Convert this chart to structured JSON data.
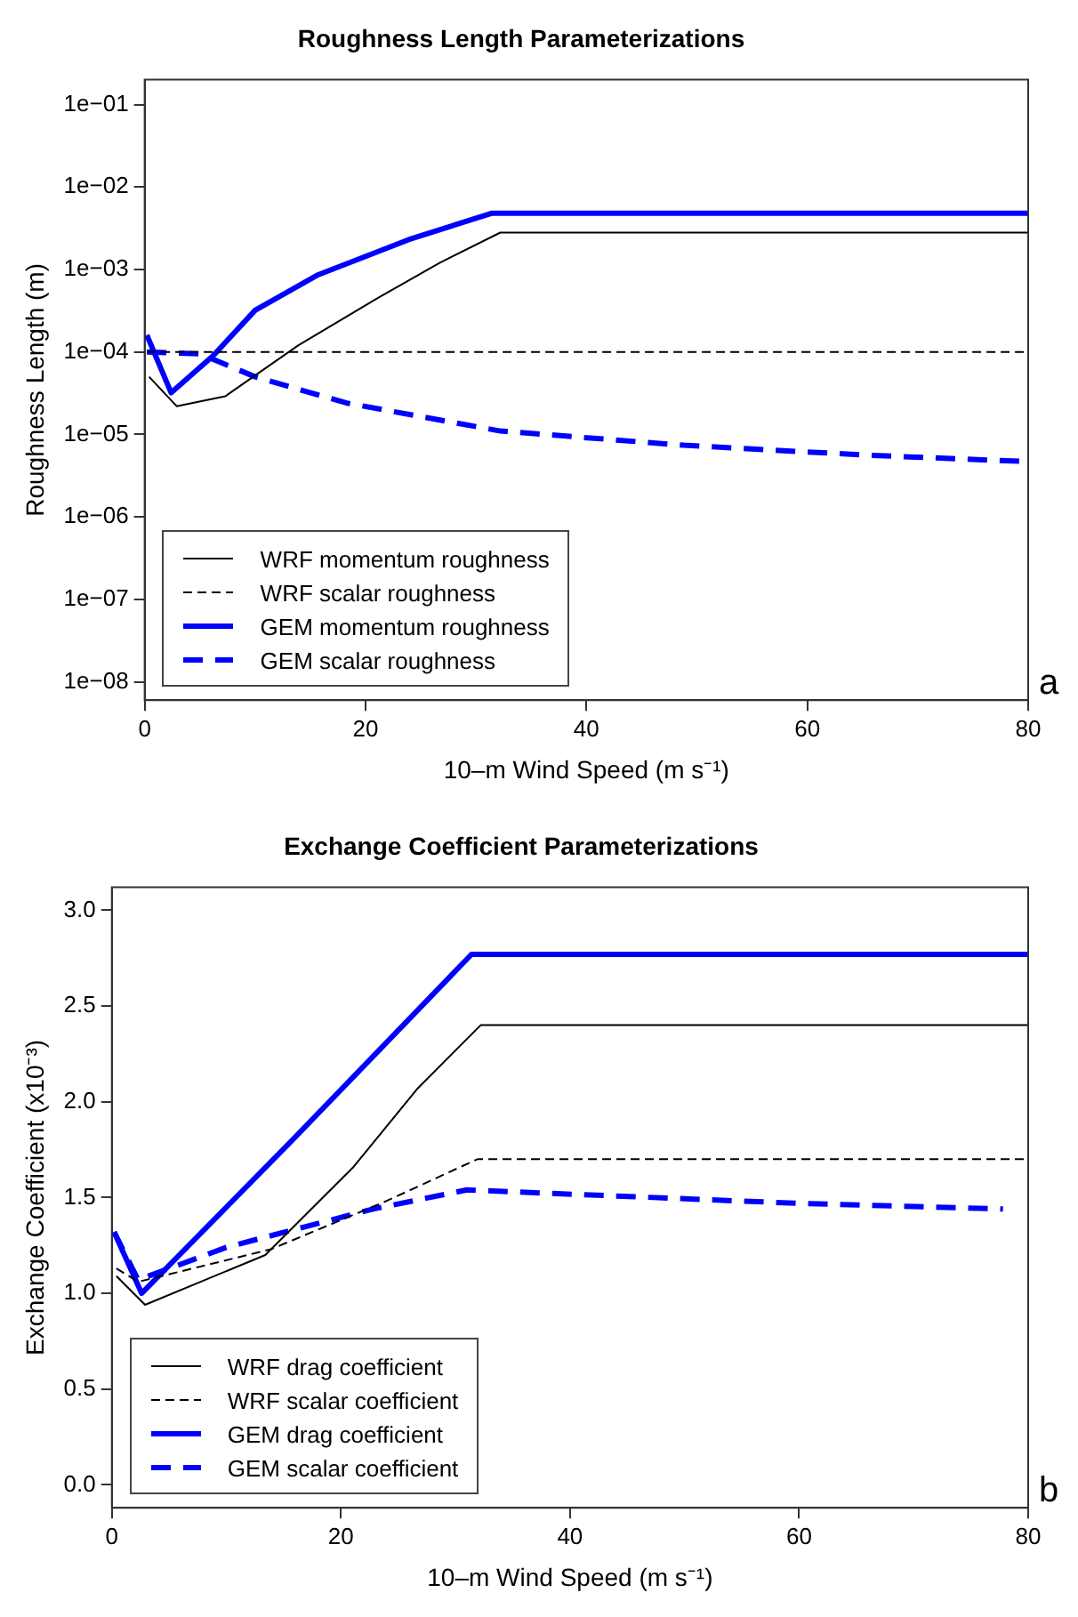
{
  "chart_data": [
    {
      "type": "line",
      "title": "Roughness Length Parameterizations",
      "xlabel": "10–m Wind Speed (m s⁻¹)",
      "ylabel": "Roughness Length (m)",
      "log": "y",
      "grid": false,
      "legend": "bottom left",
      "marker": "none",
      "xlim": [
        0,
        80
      ],
      "ylim": [
        6e-09,
        0.2
      ],
      "xticks": [
        0,
        20,
        40,
        60,
        80
      ],
      "yticks": [
        {
          "value": 1e-08,
          "label": "1e−08"
        },
        {
          "value": 1e-07,
          "label": "1e−07"
        },
        {
          "value": 1e-06,
          "label": "1e−06"
        },
        {
          "value": 1e-05,
          "label": "1e−05"
        },
        {
          "value": 0.0001,
          "label": "1e−04"
        },
        {
          "value": 0.001,
          "label": "1e−03"
        },
        {
          "value": 0.01,
          "label": "1e−02"
        },
        {
          "value": 0.1,
          "label": "1e−01"
        }
      ],
      "annotations": [
        "a"
      ],
      "series": [
        {
          "name": "WRF momentum roughness",
          "color": "#000000",
          "line_style": "solid",
          "x": [
            0.4,
            2.9,
            7.3,
            13.9,
            21.1,
            26.7,
            32.2,
            80
          ],
          "values": [
            5e-05,
            2.2e-05,
            2.9e-05,
            0.00012,
            0.00045,
            0.0012,
            0.0028,
            0.0028
          ]
        },
        {
          "name": "WRF scalar roughness",
          "color": "#000000",
          "line_style": "dashed",
          "x": [
            0.2,
            80
          ],
          "values": [
            0.0001,
            0.0001
          ]
        },
        {
          "name": "GEM momentum roughness",
          "color": "#0000ff",
          "line_style": "solid",
          "x": [
            0.2,
            2.4,
            6.2,
            10,
            15.6,
            23.9,
            31.4,
            80
          ],
          "values": [
            0.00016,
            3.2e-05,
            9e-05,
            0.00032,
            0.00085,
            0.0023,
            0.0048,
            0.0048
          ]
        },
        {
          "name": "GEM scalar roughness",
          "color": "#0000ff",
          "line_style": "dashed",
          "x": [
            0.2,
            5,
            10,
            18.3,
            32.2,
            48.8,
            65.4,
            79.7
          ],
          "values": [
            0.0001,
            9.5e-05,
            5e-05,
            2.4e-05,
            1.1e-05,
            7.4e-06,
            5.6e-06,
            4.7e-06
          ]
        }
      ]
    },
    {
      "type": "line",
      "title": "Exchange Coefficient Parameterizations",
      "xlabel": "10–m Wind Speed (m s⁻¹)",
      "ylabel": "Exchange Coefficient (x10⁻³)",
      "grid": false,
      "legend": "bottom left",
      "marker": "none",
      "xlim": [
        0,
        80
      ],
      "ylim": [
        -0.12,
        3.12
      ],
      "xticks": [
        0,
        20,
        40,
        60,
        80
      ],
      "yticks": [
        {
          "value": 0,
          "label": "0.0"
        },
        {
          "value": 0.5,
          "label": "0.5"
        },
        {
          "value": 1,
          "label": "1.0"
        },
        {
          "value": 1.5,
          "label": "1.5"
        },
        {
          "value": 2,
          "label": "2.0"
        },
        {
          "value": 2.5,
          "label": "2.5"
        },
        {
          "value": 3,
          "label": "3.0"
        }
      ],
      "annotations": [
        "b"
      ],
      "series": [
        {
          "name": "WRF drag coefficient",
          "color": "#000000",
          "line_style": "solid",
          "x": [
            0.4,
            2.9,
            13.4,
            21.1,
            26.7,
            32.2,
            80
          ],
          "values": [
            1.09,
            0.94,
            1.2,
            1.66,
            2.07,
            2.4,
            2.4
          ]
        },
        {
          "name": "WRF scalar coefficient",
          "color": "#000000",
          "line_style": "dashed",
          "x": [
            0.4,
            2.3,
            13.9,
            23.9,
            31.9,
            80
          ],
          "values": [
            1.13,
            1.06,
            1.23,
            1.48,
            1.7,
            1.7
          ]
        },
        {
          "name": "GEM drag coefficient",
          "color": "#0000ff",
          "line_style": "solid",
          "x": [
            0.2,
            2.6,
            15.6,
            31.4,
            80
          ],
          "values": [
            1.32,
            1,
            1.79,
            2.77,
            2.77
          ]
        },
        {
          "name": "GEM scalar coefficient",
          "color": "#0000ff",
          "line_style": "dashed",
          "x": [
            0.2,
            2.3,
            10,
            22.8,
            31,
            43.2,
            59.8,
            77.8
          ],
          "values": [
            1.32,
            1.07,
            1.24,
            1.44,
            1.54,
            1.51,
            1.47,
            1.44
          ]
        }
      ]
    }
  ]
}
